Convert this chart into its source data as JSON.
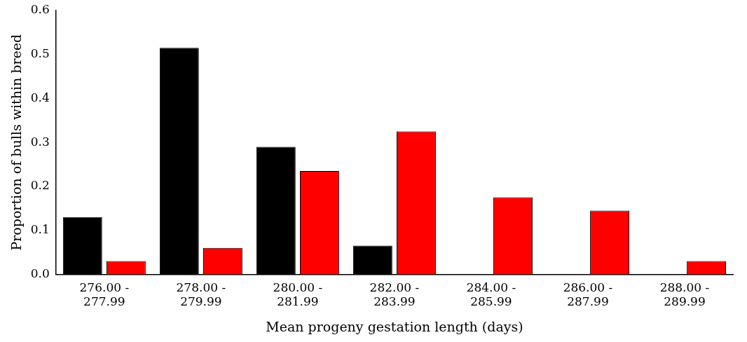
{
  "chart_data": {
    "type": "bar",
    "xlabel": "Mean progeny gestation length (days)",
    "ylabel": "Proportion of bulls within breed",
    "categories": [
      "276.00 - 277.99",
      "278.00 - 279.99",
      "280.00 - 281.99",
      "282.00 - 283.99",
      "284.00 - 285.99",
      "286.00 - 287.99",
      "288.00 - 289.99"
    ],
    "series": [
      {
        "color": "#000000",
        "values": [
          0.13,
          0.515,
          0.29,
          0.065,
          0,
          0,
          0
        ]
      },
      {
        "color": "#ff0000",
        "values": [
          0.03,
          0.06,
          0.235,
          0.325,
          0.175,
          0.145,
          0.03
        ]
      }
    ],
    "ylim": [
      0,
      0.6
    ],
    "yticks": [
      {
        "value": 0,
        "label": "0.0"
      },
      {
        "value": 0.1,
        "label": "0.1"
      },
      {
        "value": 0.2,
        "label": "0.2"
      },
      {
        "value": 0.3,
        "label": "0.3"
      },
      {
        "value": 0.4,
        "label": "0.4"
      },
      {
        "value": 0.5,
        "label": "0.5"
      },
      {
        "value": 0.6,
        "label": "0.6"
      }
    ],
    "grid": false,
    "legend": false
  }
}
